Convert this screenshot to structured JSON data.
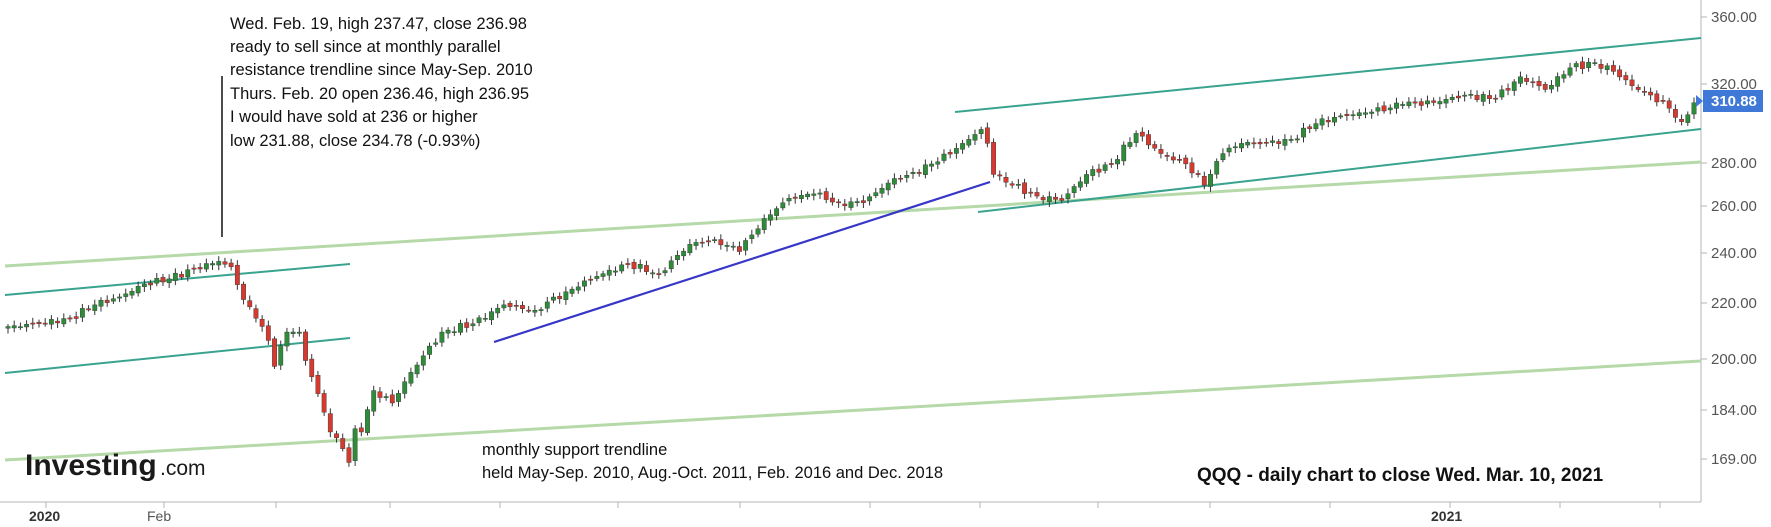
{
  "chart_data": {
    "type": "candlestick",
    "symbol_caption": "QQQ - daily chart to close Wed. Mar. 10, 2021",
    "last_price": "310.88",
    "y_axis": {
      "ticks": [
        "360.00",
        "320.00",
        "280.00",
        "260.00",
        "240.00",
        "220.00",
        "200.00",
        "184.00",
        "169.00"
      ],
      "scale": "log"
    },
    "x_axis": {
      "ticks": [
        {
          "label": "2020",
          "bold": true
        },
        {
          "label": "Feb",
          "bold": false
        },
        {
          "label": "2021",
          "bold": true
        }
      ]
    },
    "annotations": {
      "top": [
        "Wed. Feb. 19, high 237.47, close 236.98",
        "ready to sell since at monthly parallel",
        "resistance trendline since May-Sep. 2010",
        "Thurs. Feb. 20 open 236.46, high 236.95",
        "I would have sold at 236 or higher",
        "low 231.88, close 234.78 (-0.93%)"
      ],
      "bottom": [
        "monthly support trendline",
        "held May-Sep. 2010, Aug.-Oct. 2011, Feb. 2016 and Dec. 2018"
      ]
    },
    "series": [
      {
        "x": 0,
        "y": 212
      },
      {
        "x": 5,
        "y": 213
      },
      {
        "x": 10,
        "y": 215
      },
      {
        "x": 14,
        "y": 220
      },
      {
        "x": 18,
        "y": 223
      },
      {
        "x": 22,
        "y": 228
      },
      {
        "x": 26,
        "y": 230
      },
      {
        "x": 30,
        "y": 234
      },
      {
        "x": 34,
        "y": 236.98
      },
      {
        "x": 36,
        "y": 234.78
      },
      {
        "x": 38,
        "y": 222
      },
      {
        "x": 40,
        "y": 215
      },
      {
        "x": 42,
        "y": 207
      },
      {
        "x": 43,
        "y": 198
      },
      {
        "x": 45,
        "y": 210
      },
      {
        "x": 47,
        "y": 210
      },
      {
        "x": 48,
        "y": 200
      },
      {
        "x": 50,
        "y": 189
      },
      {
        "x": 52,
        "y": 177
      },
      {
        "x": 54,
        "y": 172
      },
      {
        "x": 55,
        "y": 168
      },
      {
        "x": 56,
        "y": 178
      },
      {
        "x": 57,
        "y": 177
      },
      {
        "x": 59,
        "y": 190
      },
      {
        "x": 62,
        "y": 186
      },
      {
        "x": 65,
        "y": 196
      },
      {
        "x": 70,
        "y": 210
      },
      {
        "x": 75,
        "y": 213
      },
      {
        "x": 80,
        "y": 220
      },
      {
        "x": 85,
        "y": 218
      },
      {
        "x": 90,
        "y": 225
      },
      {
        "x": 95,
        "y": 231
      },
      {
        "x": 100,
        "y": 236
      },
      {
        "x": 105,
        "y": 232
      },
      {
        "x": 110,
        "y": 244
      },
      {
        "x": 114,
        "y": 246
      },
      {
        "x": 118,
        "y": 241
      },
      {
        "x": 122,
        "y": 255
      },
      {
        "x": 126,
        "y": 264
      },
      {
        "x": 130,
        "y": 266
      },
      {
        "x": 134,
        "y": 262
      },
      {
        "x": 138,
        "y": 262
      },
      {
        "x": 142,
        "y": 271
      },
      {
        "x": 146,
        "y": 276
      },
      {
        "x": 150,
        "y": 281
      },
      {
        "x": 154,
        "y": 290
      },
      {
        "x": 157,
        "y": 297
      },
      {
        "x": 158,
        "y": 290
      },
      {
        "x": 159,
        "y": 275
      },
      {
        "x": 162,
        "y": 270
      },
      {
        "x": 166,
        "y": 265
      },
      {
        "x": 170,
        "y": 263
      },
      {
        "x": 174,
        "y": 275
      },
      {
        "x": 178,
        "y": 280
      },
      {
        "x": 182,
        "y": 295
      },
      {
        "x": 186,
        "y": 285
      },
      {
        "x": 190,
        "y": 280
      },
      {
        "x": 193,
        "y": 270
      },
      {
        "x": 196,
        "y": 285
      },
      {
        "x": 199,
        "y": 290
      },
      {
        "x": 203,
        "y": 290
      },
      {
        "x": 207,
        "y": 292
      },
      {
        "x": 211,
        "y": 300
      },
      {
        "x": 215,
        "y": 304
      },
      {
        "x": 220,
        "y": 306
      },
      {
        "x": 225,
        "y": 310
      },
      {
        "x": 230,
        "y": 311
      },
      {
        "x": 235,
        "y": 315
      },
      {
        "x": 240,
        "y": 313
      },
      {
        "x": 244,
        "y": 325
      },
      {
        "x": 248,
        "y": 318
      },
      {
        "x": 252,
        "y": 330
      },
      {
        "x": 256,
        "y": 333
      },
      {
        "x": 259,
        "y": 328
      },
      {
        "x": 262,
        "y": 320
      },
      {
        "x": 265,
        "y": 315
      },
      {
        "x": 268,
        "y": 308
      },
      {
        "x": 270,
        "y": 301
      },
      {
        "x": 272,
        "y": 310.88
      }
    ]
  }
}
